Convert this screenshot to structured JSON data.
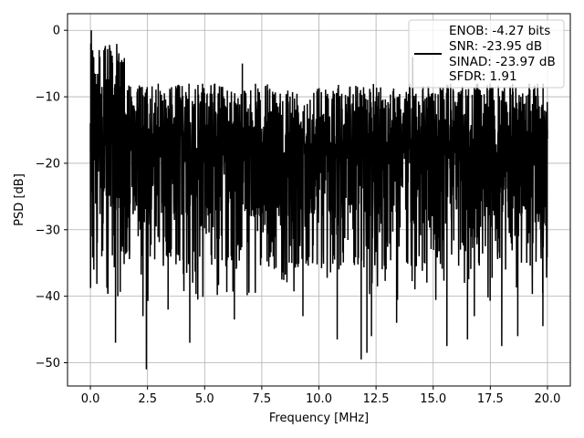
{
  "chart_data": {
    "type": "line",
    "xlabel": "Frequency [MHz]",
    "ylabel": "PSD [dB]",
    "xlim": [
      -1.0,
      21.0
    ],
    "ylim": [
      -53.5,
      2.5
    ],
    "xticks": [
      0.0,
      2.5,
      5.0,
      7.5,
      10.0,
      12.5,
      15.0,
      17.5,
      20.0
    ],
    "xtick_labels": [
      "0.0",
      "2.5",
      "5.0",
      "7.5",
      "10.0",
      "12.5",
      "15.0",
      "17.5",
      "20.0"
    ],
    "yticks": [
      0,
      -10,
      -20,
      -30,
      -40,
      -50
    ],
    "ytick_labels": [
      "0",
      "−10",
      "−20",
      "−30",
      "−40",
      "−50"
    ],
    "grid": true,
    "legend": {
      "placement": "top-right",
      "lines": [
        "ENOB: -4.27 bits",
        "SNR: -23.95 dB",
        "SINAD: -23.97 dB",
        "SFDR: 1.91"
      ]
    },
    "series": [
      {
        "color": "#000000",
        "x_range": [
          0.0,
          20.0
        ],
        "values_typical_range": [
          -28,
          -8
        ],
        "points": [
          [
            0.0,
            -14
          ],
          [
            0.02,
            -2
          ],
          [
            0.04,
            0
          ],
          [
            0.06,
            -20
          ],
          [
            0.08,
            -31
          ],
          [
            0.1,
            -3
          ],
          [
            0.15,
            -36
          ],
          [
            0.3,
            -32
          ],
          [
            0.5,
            -34
          ],
          [
            0.65,
            -5
          ],
          [
            1.1,
            -47
          ],
          [
            1.2,
            -40
          ],
          [
            2.45,
            -51
          ],
          [
            2.3,
            -43
          ],
          [
            3.4,
            -42
          ],
          [
            4.35,
            -47
          ],
          [
            4.7,
            -40.5
          ],
          [
            6.3,
            -43.5
          ],
          [
            6.65,
            -5
          ],
          [
            9.3,
            -43
          ],
          [
            10.8,
            -46.5
          ],
          [
            11.85,
            -49.5
          ],
          [
            12.1,
            -48.5
          ],
          [
            12.3,
            -46
          ],
          [
            13.4,
            -44
          ],
          [
            14.1,
            -4
          ],
          [
            15.6,
            -47.5
          ],
          [
            16.5,
            -46.5
          ],
          [
            16.8,
            -43
          ],
          [
            18.0,
            -47.5
          ],
          [
            18.7,
            -46
          ],
          [
            19.2,
            -8
          ],
          [
            19.8,
            -44.5
          ],
          [
            20.0,
            -15
          ]
        ]
      }
    ]
  }
}
